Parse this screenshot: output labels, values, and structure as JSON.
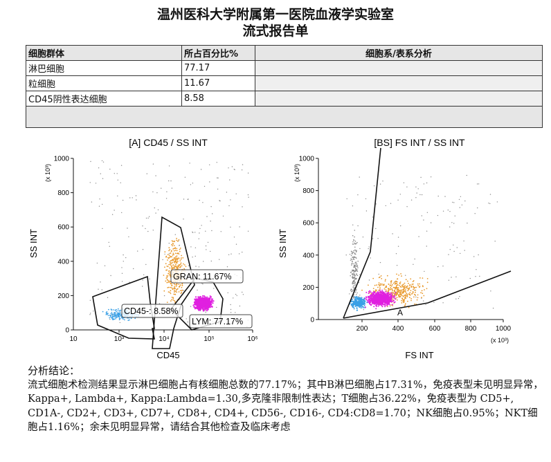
{
  "report": {
    "title_line1": "温州医科大学附属第一医院血液学实验室",
    "title_line2": "流式报告单"
  },
  "table": {
    "headers": [
      "细胞群体",
      "所占百分比%",
      "细胞系/表系分析"
    ],
    "rows": [
      {
        "population": "淋巴细胞",
        "percent": "77.17",
        "analysis": ""
      },
      {
        "population": "粒细胞",
        "percent": "11.67",
        "analysis": ""
      },
      {
        "population": "CD45阴性表达细胞",
        "percent": "8.58",
        "analysis": ""
      }
    ]
  },
  "plot_a": {
    "title": "[A] CD45 / SS INT",
    "xlabel": "CD45",
    "ylabel": "SS INT",
    "y_multiplier": "(x 10³)",
    "y_ticks": [
      "0",
      "200",
      "400",
      "600",
      "800",
      "1000"
    ],
    "x_ticks": [
      "10³",
      "10⁴",
      "10⁵",
      "10⁶"
    ],
    "x_ticks_minor_left": "10",
    "gates": {
      "gran": "GRAN: 11.67%",
      "cd45": "CD45-: 8.58%",
      "lym": "LYM: 77.17%"
    }
  },
  "plot_b": {
    "title": "[BS] FS INT / SS INT",
    "xlabel": "FS INT",
    "ylabel": "SS INT",
    "y_multiplier": "(x 10³)",
    "x_multiplier": "(x 10³)",
    "y_ticks": [
      "0",
      "200",
      "400",
      "600",
      "800",
      "1000"
    ],
    "x_ticks": [
      "200",
      "400",
      "600",
      "800",
      "1000"
    ],
    "gate_label": "A"
  },
  "colors": {
    "lym": "#e020e0",
    "gran": "#e8982a",
    "cd45neg": "#3aa0e6",
    "debris": "#8a8a8a"
  },
  "conclusion": {
    "heading": "分析结论：",
    "text": "流式细胞术检测结果显示淋巴细胞占有核细胞总数的77.17%；其中B淋巴细胞占17.31%，免疫表型未见明显异常，Kappa+, Lambda+, Kappa:Lambda=1.30,多克隆非限制性表达；T细胞占36.22%，免疫表型为 CD5+, CD1A-, CD2+, CD3+, CD7+, CD8+, CD4+, CD56-, CD16-, CD4:CD8=1.70；NK细胞占0.95%；NKT细胞占1.16%；余未见明显异常，请结合其他检查及临床考虑"
  }
}
